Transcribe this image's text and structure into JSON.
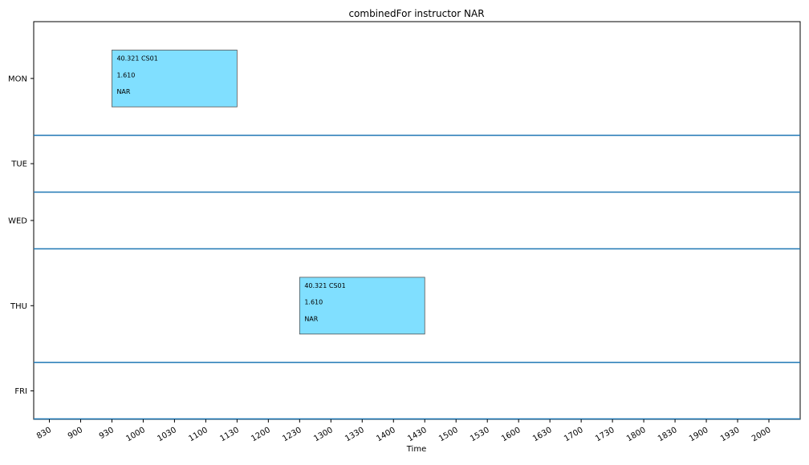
{
  "chart_data": {
    "type": "timeline",
    "title": "combinedFor instructor NAR",
    "xlabel": "Time",
    "ylabel": "",
    "xlim": [
      "0815",
      "2030"
    ],
    "x_ticks": [
      "830",
      "900",
      "930",
      "1000",
      "1030",
      "1100",
      "1130",
      "1200",
      "1230",
      "1300",
      "1330",
      "1400",
      "1430",
      "1500",
      "1530",
      "1600",
      "1630",
      "1700",
      "1730",
      "1800",
      "1830",
      "1900",
      "1930",
      "2000"
    ],
    "days": [
      "MON",
      "TUE",
      "WED",
      "THU",
      "FRI"
    ],
    "grid": false,
    "events": [
      {
        "day": "MON",
        "start": "0930",
        "end": "1130",
        "lines": [
          "40.321 CS01",
          "1.610",
          "NAR"
        ]
      },
      {
        "day": "THU",
        "start": "1230",
        "end": "1430",
        "lines": [
          "40.321 CS01",
          "1.610",
          "NAR"
        ]
      }
    ],
    "colors": {
      "event_fill": "#80dfff",
      "event_stroke": "#555555",
      "divider": "#1f77b4",
      "axis": "#000000"
    }
  }
}
